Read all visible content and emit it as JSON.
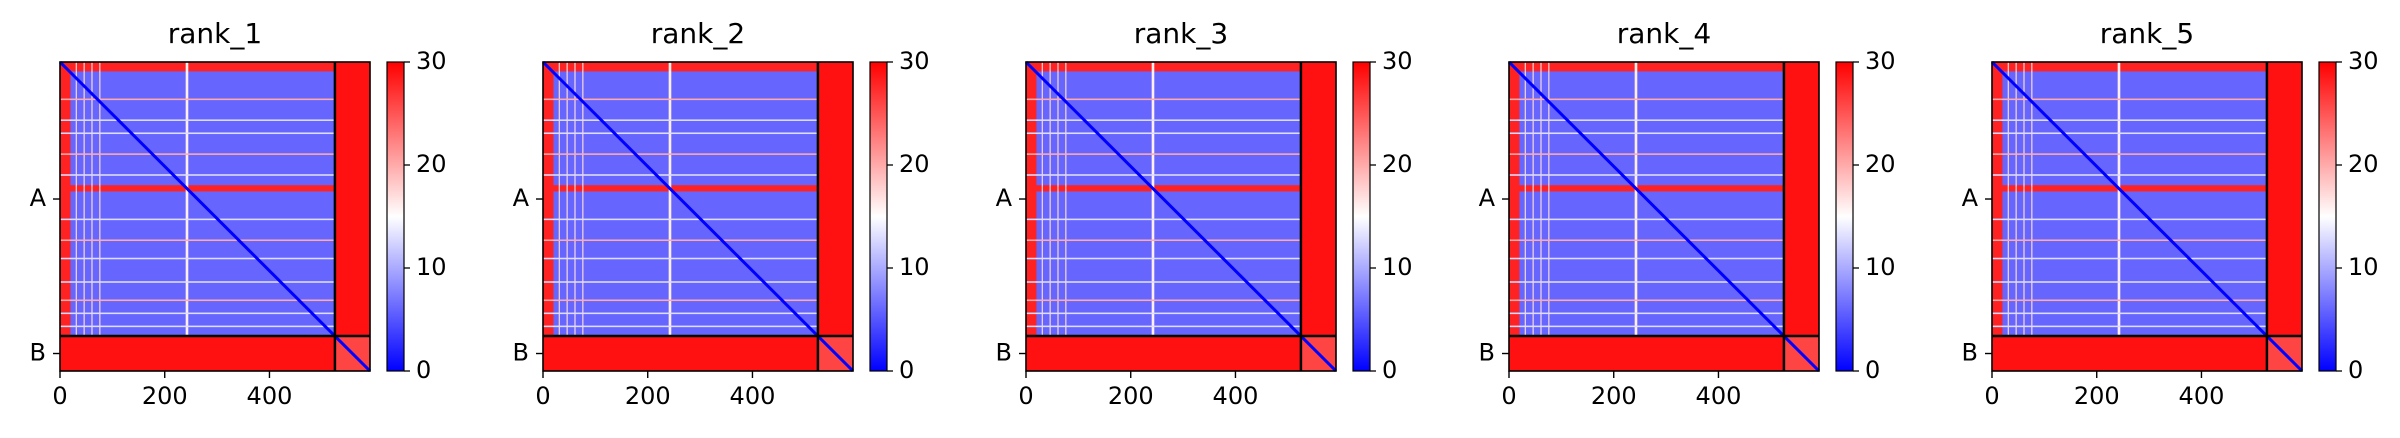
{
  "chart_data": [
    {
      "type": "heatmap",
      "title": "rank_1",
      "chain_labels": [
        "A",
        "B"
      ],
      "chain_lengths": [
        525,
        67
      ],
      "xticks": [
        0,
        200,
        400
      ],
      "clim": [
        0,
        30
      ],
      "colorbar_ticks": [
        0,
        10,
        20,
        30
      ],
      "colormap": "bwr",
      "red_bands_A": [
        [
          0,
          3
        ],
        [
          235,
          250
        ]
      ],
      "white_line_A": [
        [
          60,
          80
        ],
        [
          230,
          245
        ]
      ]
    },
    {
      "type": "heatmap",
      "title": "rank_2",
      "chain_labels": [
        "A",
        "B"
      ],
      "chain_lengths": [
        525,
        67
      ],
      "xticks": [
        0,
        200,
        400
      ],
      "clim": [
        0,
        30
      ],
      "colorbar_ticks": [
        0,
        10,
        20,
        30
      ],
      "colormap": "bwr"
    },
    {
      "type": "heatmap",
      "title": "rank_3",
      "chain_labels": [
        "A",
        "B"
      ],
      "chain_lengths": [
        525,
        67
      ],
      "xticks": [
        0,
        200,
        400
      ],
      "clim": [
        0,
        30
      ],
      "colorbar_ticks": [
        0,
        10,
        20,
        30
      ],
      "colormap": "bwr"
    },
    {
      "type": "heatmap",
      "title": "rank_4",
      "chain_labels": [
        "A",
        "B"
      ],
      "chain_lengths": [
        525,
        67
      ],
      "xticks": [
        0,
        200,
        400
      ],
      "clim": [
        0,
        30
      ],
      "colorbar_ticks": [
        0,
        10,
        20,
        30
      ],
      "colormap": "bwr"
    },
    {
      "type": "heatmap",
      "title": "rank_5",
      "chain_labels": [
        "A",
        "B"
      ],
      "chain_lengths": [
        525,
        67
      ],
      "xticks": [
        0,
        200,
        400
      ],
      "clim": [
        0,
        30
      ],
      "colorbar_ticks": [
        0,
        10,
        20,
        30
      ],
      "colormap": "bwr"
    }
  ],
  "colors": {
    "low": "#0000ff",
    "mid": "#ffffff",
    "high": "#ff0000",
    "divider": "#000000"
  }
}
